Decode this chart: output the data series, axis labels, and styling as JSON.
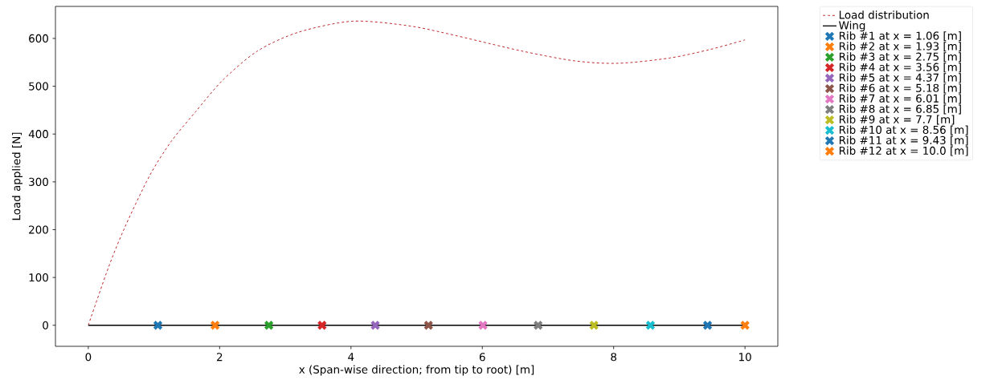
{
  "chart_data": {
    "type": "line",
    "xlabel": "x (Span-wise direction; from tip to root) [m]",
    "ylabel": "Load applied [N]",
    "xlim": [
      -0.5,
      10.5
    ],
    "ylim": [
      -44,
      667
    ],
    "xticks": [
      0,
      2,
      4,
      6,
      8,
      10
    ],
    "yticks": [
      0,
      100,
      200,
      300,
      400,
      500,
      600
    ],
    "legend": "top right",
    "series": [
      {
        "name": "Load distribution",
        "color": "#c0282d",
        "line_style": "dashed",
        "marker": "none",
        "x": [
          0,
          0.31,
          0.56,
          0.93,
          1.26,
          1.63,
          2.05,
          2.58,
          3.2,
          4.02,
          4.85,
          5.47,
          6.59,
          7.41,
          8.07,
          8.85,
          9.47,
          10
        ],
        "values": [
          0,
          122,
          206,
          312,
          384,
          446,
          513,
          574,
          613,
          636,
          627,
          610,
          574,
          553,
          548,
          559,
          577,
          597
        ]
      },
      {
        "name": "Wing",
        "color": "#000000",
        "line_style": "solid",
        "marker": "none",
        "x": [
          0,
          10
        ],
        "values": [
          0,
          0
        ]
      },
      {
        "name": "Rib #1 at x = 1.06 [m]",
        "type": "scatter",
        "color": "#1f77b4",
        "marker": "cross",
        "x": [
          1.06
        ],
        "values": [
          0
        ]
      },
      {
        "name": "Rib #2 at x = 1.93 [m]",
        "type": "scatter",
        "color": "#ff7f0e",
        "marker": "cross",
        "x": [
          1.93
        ],
        "values": [
          0
        ]
      },
      {
        "name": "Rib #3 at x = 2.75 [m]",
        "type": "scatter",
        "color": "#2ca02c",
        "marker": "cross",
        "x": [
          2.75
        ],
        "values": [
          0
        ]
      },
      {
        "name": "Rib #4 at x = 3.56 [m]",
        "type": "scatter",
        "color": "#d62728",
        "marker": "cross",
        "x": [
          3.56
        ],
        "values": [
          0
        ]
      },
      {
        "name": "Rib #5 at x = 4.37 [m]",
        "type": "scatter",
        "color": "#9467bd",
        "marker": "cross",
        "x": [
          4.37
        ],
        "values": [
          0
        ]
      },
      {
        "name": "Rib #6 at x = 5.18 [m]",
        "type": "scatter",
        "color": "#8c564b",
        "marker": "cross",
        "x": [
          5.18
        ],
        "values": [
          0
        ]
      },
      {
        "name": "Rib #7 at x = 6.01 [m]",
        "type": "scatter",
        "color": "#e377c2",
        "marker": "cross",
        "x": [
          6.01
        ],
        "values": [
          0
        ]
      },
      {
        "name": "Rib #8 at x = 6.85 [m]",
        "type": "scatter",
        "color": "#7f7f7f",
        "marker": "cross",
        "x": [
          6.85
        ],
        "values": [
          0
        ]
      },
      {
        "name": "Rib #9 at x = 7.7 [m]",
        "type": "scatter",
        "color": "#bcbd22",
        "marker": "cross",
        "x": [
          7.7
        ],
        "values": [
          0
        ]
      },
      {
        "name": "Rib #10 at x = 8.56 [m]",
        "type": "scatter",
        "color": "#17becf",
        "marker": "cross",
        "x": [
          8.56
        ],
        "values": [
          0
        ]
      },
      {
        "name": "Rib #11 at x = 9.43 [m]",
        "type": "scatter",
        "color": "#1f77b4",
        "marker": "cross",
        "x": [
          9.43
        ],
        "values": [
          0
        ]
      },
      {
        "name": "Rib #12 at x = 10.0 [m]",
        "type": "scatter",
        "color": "#ff7f0e",
        "marker": "cross",
        "x": [
          10.0
        ],
        "values": [
          0
        ]
      }
    ]
  }
}
